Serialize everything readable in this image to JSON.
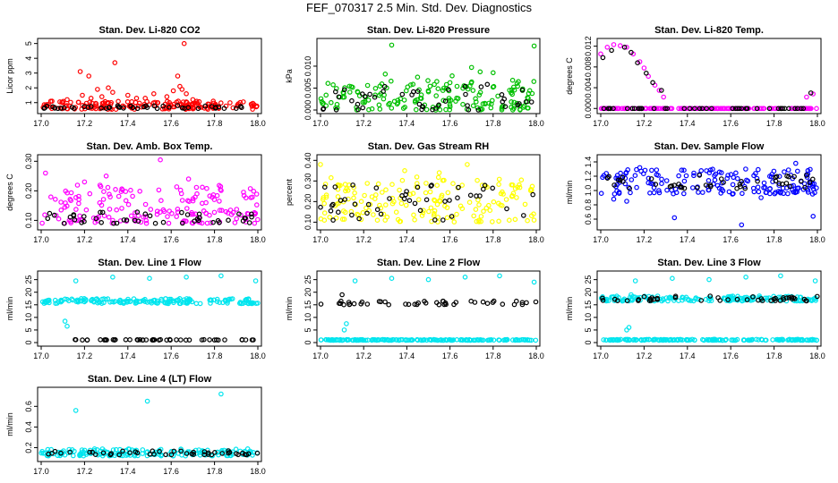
{
  "title": "FEF_070317  2.5 Min. Std. Dev. Diagnostics",
  "chart_data": [
    {
      "type": "scatter",
      "title": "Stan. Dev. Li-820 CO2",
      "ylabel": "Licor ppm",
      "xlim": [
        17.0,
        18.0
      ],
      "ylim": [
        0.5,
        5.1
      ],
      "xticks": [
        "17.0",
        "17.2",
        "17.4",
        "17.6",
        "17.8",
        "18.0"
      ],
      "yticks": [
        "1",
        "2",
        "3",
        "4",
        "5"
      ],
      "series": [
        {
          "color": "#ff0000",
          "band": [
            0.55,
            1.1
          ],
          "x": [
            17.18,
            17.19,
            17.22,
            17.26,
            17.28,
            17.31,
            17.33,
            17.34,
            17.12,
            17.4,
            17.44,
            17.52,
            17.58,
            17.61,
            17.63,
            17.64,
            17.65,
            17.66,
            17.67,
            17.7,
            17.05,
            17.1,
            17.23,
            17.48
          ],
          "y": [
            3.1,
            1.5,
            2.8,
            1.9,
            1.4,
            2.0,
            1.7,
            3.7,
            1.2,
            1.5,
            1.3,
            1.6,
            1.4,
            1.8,
            2.8,
            2.1,
            1.9,
            5.0,
            1.6,
            1.2,
            1.1,
            1.0,
            1.3,
            1.3
          ]
        },
        {
          "color": "#000000",
          "band": [
            0.6,
            0.8
          ]
        }
      ]
    },
    {
      "type": "scatter",
      "title": "Stan. Dev. Li-820 Pressure",
      "ylabel": "kPa",
      "xlim": [
        17.0,
        18.0
      ],
      "ylim": [
        0.0,
        0.0155
      ],
      "xticks": [
        "17.0",
        "17.2",
        "17.4",
        "17.6",
        "17.8",
        "18.0"
      ],
      "yticks": [
        "0.000",
        "0.005",
        "0.010"
      ],
      "series": [
        {
          "color": "#00c000",
          "band": [
            0.0,
            0.0068
          ],
          "x": [
            17.33,
            17.99,
            17.7,
            17.74,
            17.8,
            17.61,
            17.3,
            17.45
          ],
          "y": [
            0.0148,
            0.0146,
            0.0097,
            0.0087,
            0.0085,
            0.0078,
            0.0082,
            0.0075
          ]
        },
        {
          "color": "#000000",
          "band": [
            0.0,
            0.0062
          ]
        }
      ]
    },
    {
      "type": "scatter",
      "title": "Stan. Dev. Li-820 Temp.",
      "ylabel": "degrees C",
      "xlim": [
        17.0,
        18.0
      ],
      "ylim": [
        -0.0003,
        0.0128
      ],
      "xticks": [
        "17.0",
        "17.2",
        "17.4",
        "17.6",
        "17.8",
        "18.0"
      ],
      "yticks": [
        "0.000",
        "0.004",
        "0.008",
        "0.012"
      ],
      "series": [
        {
          "color": "#ff00ff",
          "band": [
            0.0,
            0.0
          ],
          "x": [
            17.0,
            17.03,
            17.06,
            17.09,
            17.12,
            17.15,
            17.18,
            17.2,
            17.22,
            17.25,
            17.27,
            17.29,
            17.95,
            17.98
          ],
          "y": [
            0.0105,
            0.0118,
            0.0123,
            0.0121,
            0.0118,
            0.0105,
            0.009,
            0.0078,
            0.0062,
            0.0045,
            0.0035,
            0.0022,
            0.0022,
            0.0028
          ]
        },
        {
          "color": "#000000",
          "band": [
            0.0,
            0.0
          ],
          "x": [
            17.01,
            17.05,
            17.11,
            17.14,
            17.17,
            17.21,
            17.24,
            17.28,
            17.97
          ],
          "y": [
            0.0098,
            0.0112,
            0.0118,
            0.0108,
            0.0088,
            0.0068,
            0.005,
            0.0035,
            0.003
          ]
        }
      ]
    },
    {
      "type": "scatter",
      "title": "Stan. Dev. Amb. Box Temp.",
      "ylabel": "degrees C",
      "xlim": [
        17.0,
        18.0
      ],
      "ylim": [
        0.08,
        0.31
      ],
      "xticks": [
        "17.0",
        "17.2",
        "17.4",
        "17.6",
        "17.8",
        "18.0"
      ],
      "yticks": [
        "0.10",
        "0.20",
        "0.30"
      ],
      "series": [
        {
          "color": "#ff00ff",
          "band": [
            0.09,
            0.22
          ],
          "x": [
            17.55,
            17.02,
            17.3,
            17.68,
            17.2
          ],
          "y": [
            0.305,
            0.26,
            0.25,
            0.24,
            0.23
          ]
        },
        {
          "color": "#000000",
          "band": [
            0.09,
            0.13
          ]
        }
      ]
    },
    {
      "type": "scatter",
      "title": "Stan. Dev. Gas Stream RH",
      "ylabel": "percent",
      "xlim": [
        17.0,
        18.0
      ],
      "ylim": [
        0.08,
        0.41
      ],
      "xticks": [
        "17.0",
        "17.2",
        "17.4",
        "17.6",
        "17.8",
        "18.0"
      ],
      "yticks": [
        "0.10",
        "0.20",
        "0.30",
        "0.40"
      ],
      "series": [
        {
          "color": "#ffff00",
          "band": [
            0.1,
            0.32
          ],
          "x": [
            17.0,
            17.68,
            17.39,
            17.55
          ],
          "y": [
            0.38,
            0.38,
            0.35,
            0.34
          ]
        },
        {
          "color": "#000000",
          "band": [
            0.11,
            0.28
          ],
          "x": [
            17.02,
            17.15
          ],
          "y": [
            0.27,
            0.28
          ]
        }
      ]
    },
    {
      "type": "scatter",
      "title": "Stan. Dev. Sample Flow",
      "ylabel": "ml/min",
      "xlim": [
        17.0,
        18.0
      ],
      "ylim": [
        0.5,
        1.45
      ],
      "xticks": [
        "17.0",
        "17.2",
        "17.4",
        "17.6",
        "17.8",
        "18.0"
      ],
      "yticks": [
        "0.6",
        "0.8",
        "1.0",
        "1.2",
        "1.4"
      ],
      "series": [
        {
          "color": "#0000ff",
          "band": [
            0.95,
            1.3
          ],
          "x": [
            17.34,
            17.65,
            17.98,
            17.12,
            17.06,
            17.18,
            17.74,
            17.9
          ],
          "y": [
            0.62,
            0.52,
            0.64,
            0.85,
            0.88,
            1.32,
            0.9,
            1.38
          ]
        },
        {
          "color": "#000000",
          "band": [
            1.02,
            1.22
          ]
        }
      ]
    },
    {
      "type": "scatter",
      "title": "Stan. Dev. Line 1 Flow",
      "ylabel": "ml/min",
      "xlim": [
        17.0,
        18.0
      ],
      "ylim": [
        0,
        27
      ],
      "xticks": [
        "17.0",
        "17.2",
        "17.4",
        "17.6",
        "17.8",
        "18.0"
      ],
      "yticks": [
        "0",
        "5",
        "10",
        "15",
        "20",
        "25"
      ],
      "series": [
        {
          "color": "#00e5ee",
          "band": [
            15.5,
            17.5
          ],
          "x": [
            17.16,
            17.33,
            17.5,
            17.67,
            17.83,
            17.99,
            17.12,
            17.11
          ],
          "y": [
            24.5,
            26.0,
            25.5,
            26.0,
            26.5,
            24.5,
            6.5,
            8.5
          ]
        },
        {
          "color": "#000000",
          "band": [
            1.0,
            1.2
          ]
        }
      ]
    },
    {
      "type": "scatter",
      "title": "Stan. Dev. Line 2 Flow",
      "ylabel": "ml/min",
      "xlim": [
        17.0,
        18.0
      ],
      "ylim": [
        0,
        27
      ],
      "xticks": [
        "17.0",
        "17.2",
        "17.4",
        "17.6",
        "17.8",
        "18.0"
      ],
      "yticks": [
        "0",
        "5",
        "10",
        "15",
        "20",
        "25"
      ],
      "series": [
        {
          "color": "#00e5ee",
          "band": [
            0.9,
            1.2
          ],
          "x": [
            17.16,
            17.33,
            17.5,
            17.67,
            17.83,
            17.99,
            17.11,
            17.12
          ],
          "y": [
            24.5,
            25.5,
            25.0,
            26.0,
            26.5,
            24.0,
            5.0,
            7.5
          ]
        },
        {
          "color": "#000000",
          "band": [
            15.0,
            16.5
          ],
          "x": [
            17.1
          ],
          "y": [
            19.0
          ]
        }
      ]
    },
    {
      "type": "scatter",
      "title": "Stan. Dev. Line 3 Flow",
      "ylabel": "ml/min",
      "xlim": [
        17.0,
        18.0
      ],
      "ylim": [
        0,
        27
      ],
      "xticks": [
        "17.0",
        "17.2",
        "17.4",
        "17.6",
        "17.8",
        "18.0"
      ],
      "yticks": [
        "0",
        "5",
        "10",
        "15",
        "20",
        "25"
      ],
      "series": [
        {
          "color": "#00e5ee",
          "band": [
            0.9,
            1.3
          ],
          "x": [
            17.16,
            17.33,
            17.5,
            17.67,
            17.83,
            17.99,
            17.12,
            17.13,
            17.14
          ],
          "y": [
            24.5,
            25.5,
            25.0,
            26.0,
            26.5,
            24.5,
            5.0,
            6.0,
            19.0
          ]
        },
        {
          "color": "#00e5ee",
          "band": [
            16.5,
            18.5
          ]
        },
        {
          "color": "#000000",
          "band": [
            16.5,
            18.5
          ]
        }
      ]
    },
    {
      "type": "scatter",
      "title": "Stan. Dev. Line 4 (LT) Flow",
      "ylabel": "ml/min",
      "xlim": [
        17.0,
        18.0
      ],
      "ylim": [
        0.1,
        0.75
      ],
      "xticks": [
        "17.0",
        "17.2",
        "17.4",
        "17.6",
        "17.8",
        "18.0"
      ],
      "yticks": [
        "0.2",
        "0.4",
        "0.6"
      ],
      "series": [
        {
          "color": "#00e5ee",
          "band": [
            0.12,
            0.19
          ],
          "x": [
            17.16,
            17.49,
            17.83
          ],
          "y": [
            0.56,
            0.65,
            0.72
          ]
        },
        {
          "color": "#000000",
          "band": [
            0.13,
            0.17
          ]
        }
      ]
    }
  ]
}
